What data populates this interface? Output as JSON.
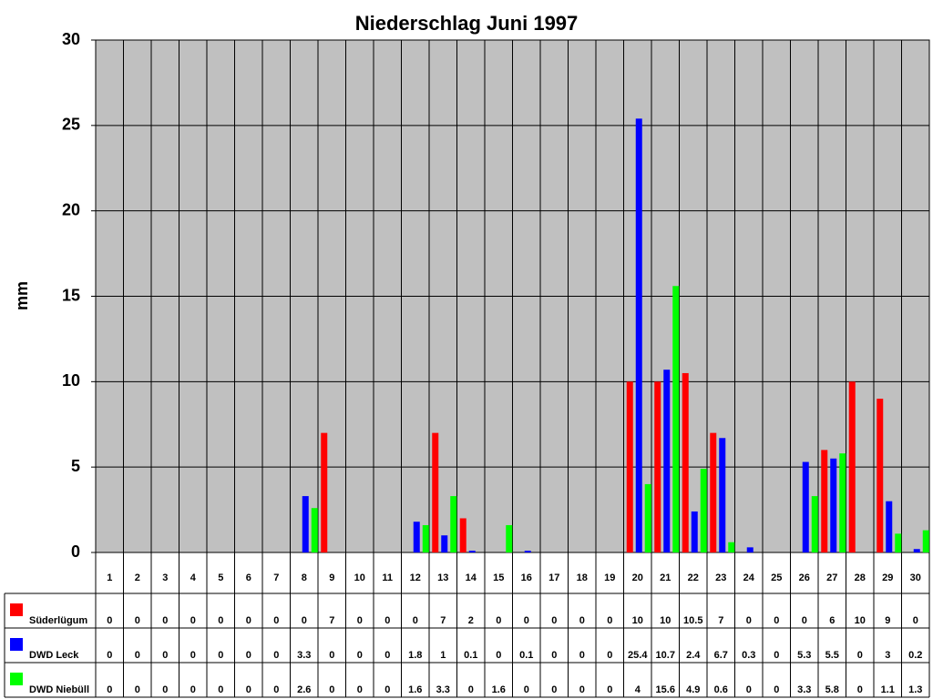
{
  "chart_data": {
    "type": "bar",
    "title": "Niederschlag Juni 1997",
    "y_label": "mm",
    "categories": [
      "1",
      "2",
      "3",
      "4",
      "5",
      "6",
      "7",
      "8",
      "9",
      "10",
      "11",
      "12",
      "13",
      "14",
      "15",
      "16",
      "17",
      "18",
      "19",
      "20",
      "21",
      "22",
      "23",
      "24",
      "25",
      "26",
      "27",
      "28",
      "29",
      "30"
    ],
    "series": [
      {
        "name": "Süderlügum",
        "color": "#ff0000",
        "values": [
          0,
          0,
          0,
          0,
          0,
          0,
          0,
          0,
          7,
          0,
          0,
          0,
          7,
          2,
          0,
          0,
          0,
          0,
          0,
          10,
          10,
          10.5,
          7,
          0,
          0,
          0,
          6,
          10,
          9,
          0
        ]
      },
      {
        "name": "DWD Leck",
        "color": "#0000ff",
        "values": [
          0,
          0,
          0,
          0,
          0,
          0,
          0,
          3.3,
          0,
          0,
          0,
          1.8,
          1,
          0.1,
          0,
          0.1,
          0,
          0,
          0,
          25.4,
          10.7,
          2.4,
          6.7,
          0.3,
          0,
          5.3,
          5.5,
          0,
          3,
          0.2
        ]
      },
      {
        "name": "DWD Niebüll",
        "color": "#00ff00",
        "values": [
          0,
          0,
          0,
          0,
          0,
          0,
          0,
          2.6,
          0,
          0,
          0,
          1.6,
          3.3,
          0,
          1.6,
          0,
          0,
          0,
          0,
          4,
          15.6,
          4.9,
          0.6,
          0,
          0,
          3.3,
          5.8,
          0,
          1.1,
          1.3
        ]
      }
    ],
    "ylim": [
      0,
      30
    ],
    "yticks": [
      0,
      5,
      10,
      15,
      20,
      25,
      30
    ],
    "grid": true,
    "plot_background": "#c0c0c0"
  }
}
